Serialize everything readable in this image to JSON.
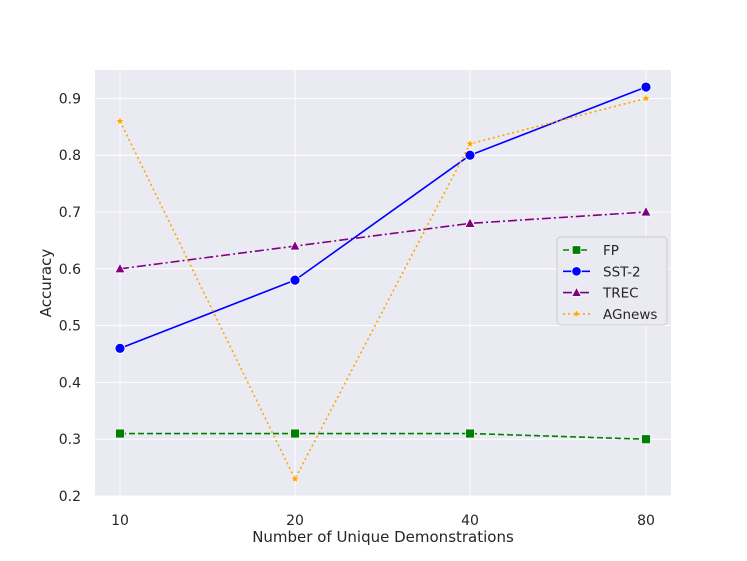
{
  "colors": {
    "plot_background": "#eaeaf2",
    "grid": "#ffffff",
    "text": "#262626"
  },
  "chart_data": {
    "type": "line",
    "xlabel": "Number of Unique Demonstrations",
    "ylabel": "Accuracy",
    "categories": [
      "10",
      "20",
      "40",
      "80"
    ],
    "ylim": [
      0.2,
      0.95
    ],
    "yticks": [
      "0.2",
      "0.3",
      "0.4",
      "0.5",
      "0.6",
      "0.7",
      "0.8",
      "0.9"
    ],
    "grid": true,
    "legend_position": "right",
    "series": [
      {
        "name": "FP",
        "values": [
          0.31,
          0.31,
          0.31,
          0.3
        ],
        "color": "#008000",
        "line_style": "dashed",
        "marker": "square"
      },
      {
        "name": "SST-2",
        "values": [
          0.46,
          0.58,
          0.8,
          0.92
        ],
        "color": "#0000ff",
        "line_style": "solid",
        "marker": "circle"
      },
      {
        "name": "TREC",
        "values": [
          0.6,
          0.64,
          0.68,
          0.7
        ],
        "color": "#800080",
        "line_style": "dashdot",
        "marker": "triangle"
      },
      {
        "name": "AGnews",
        "values": [
          0.86,
          0.23,
          0.82,
          0.9
        ],
        "color": "#ffa500",
        "line_style": "dotted",
        "marker": "star"
      }
    ]
  }
}
